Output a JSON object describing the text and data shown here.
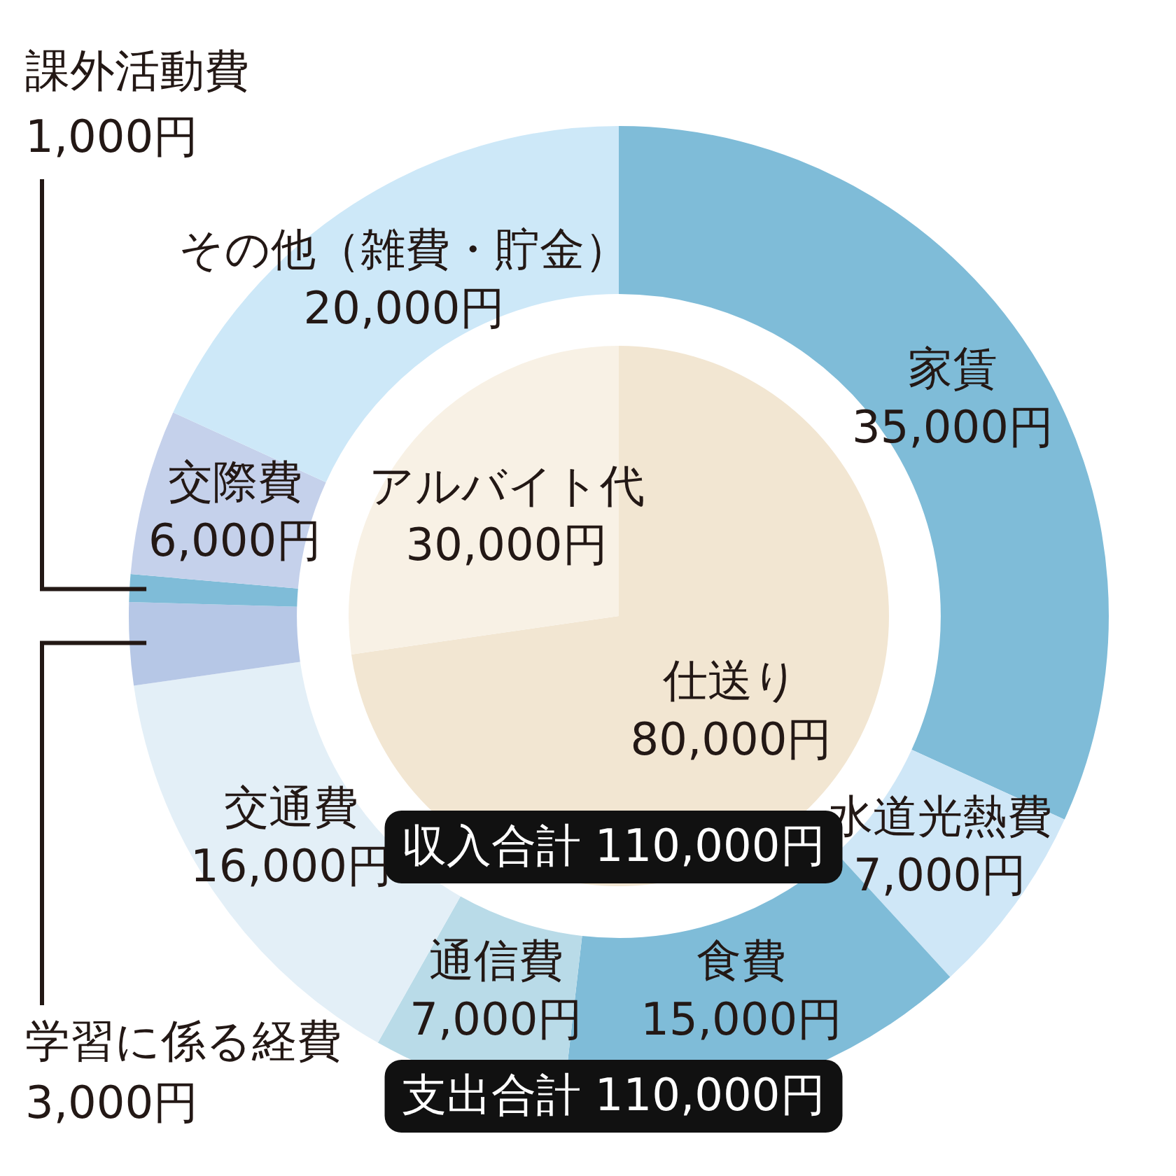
{
  "chart_data": [
    {
      "type": "donut",
      "categories": [
        "家賃",
        "水道光熱費",
        "食費",
        "通信費",
        "交通費",
        "学習に係る経費",
        "課外活動費",
        "交際費",
        "その他（雑費・貯金）"
      ],
      "values": [
        35000,
        7000,
        15000,
        7000,
        16000,
        3000,
        1000,
        6000,
        20000
      ],
      "colors": [
        "#7fbcd8",
        "#cfe7f7",
        "#7fbcd8",
        "#b9dbe8",
        "#e3eff7",
        "#b6c7e6",
        "#7fbcd8",
        "#c5d1eb",
        "#cde8f8"
      ],
      "value_labels": [
        "35,000円",
        "7,000円",
        "15,000円",
        "7,000円",
        "16,000円",
        "3,000円",
        "1,000円",
        "6,000円",
        "20,000円"
      ],
      "annotations": [
        "支出合計 110,000円"
      ]
    },
    {
      "type": "pie",
      "categories": [
        "仕送り",
        "アルバイト代"
      ],
      "values": [
        80000,
        30000
      ],
      "colors": [
        "#f2e6d2",
        "#f8f1e5"
      ],
      "value_labels": [
        "80,000円",
        "30,000円"
      ],
      "annotations": [
        "収入合計 110,000円"
      ]
    }
  ]
}
